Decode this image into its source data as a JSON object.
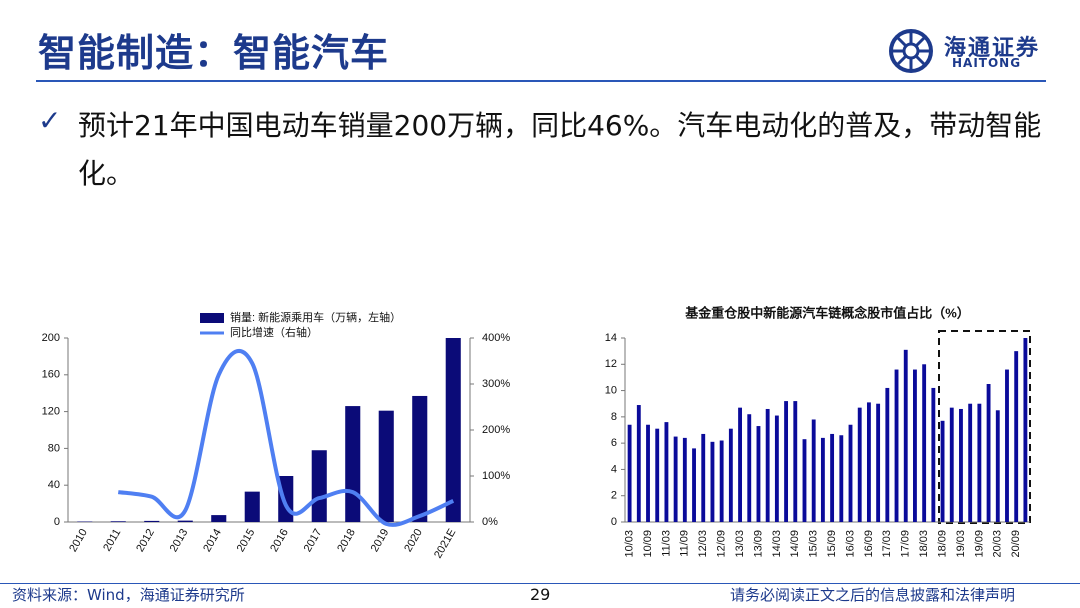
{
  "header": {
    "title": "智能制造：智能汽车",
    "logo_cn": "海通证券",
    "logo_en": "HAITONG"
  },
  "bullet": "预计21年中国电动车销量200万辆，同比46%。汽车电动化的普及，带动智能化。",
  "footer": {
    "source": "资料来源：Wind，海通证券研究所",
    "page": "29",
    "disclaimer": "请务必阅读正文之后的信息披露和法律声明"
  },
  "chart_data": [
    {
      "type": "bar",
      "categories": [
        "2010",
        "2011",
        "2012",
        "2013",
        "2014",
        "2015",
        "2016",
        "2017",
        "2018",
        "2019",
        "2020",
        "2021E"
      ],
      "series": [
        {
          "name": "销量: 新能源乘用车（万辆，左轴）",
          "color": "#0b0b78",
          "values": [
            0.5,
            0.8,
            1.2,
            1.5,
            7.5,
            33,
            50,
            78,
            126,
            121,
            137,
            200
          ]
        },
        {
          "name": "同比增速（右轴）",
          "color": "#4f7ff2",
          "type": "line",
          "axis": "y2",
          "values": [
            null,
            65,
            55,
            25,
            320,
            345,
            37,
            52,
            65,
            -4,
            13,
            46
          ]
        }
      ],
      "ylim": [
        0,
        200
      ],
      "yticks": [
        0,
        40,
        80,
        120,
        160,
        200
      ],
      "y2lim": [
        0,
        400
      ],
      "y2ticks": [
        {
          "value": 0,
          "label": "0%"
        },
        {
          "value": 100,
          "label": "100%"
        },
        {
          "value": 200,
          "label": "200%"
        },
        {
          "value": 300,
          "label": "300%"
        },
        {
          "value": 400,
          "label": "400%"
        }
      ],
      "legend": "top"
    },
    {
      "type": "bar",
      "title": "基金重仓股中新能源汽车链概念股市值占比（%）",
      "categories": [
        "10/03",
        null,
        "10/09",
        null,
        "11/03",
        null,
        "11/09",
        null,
        "12/03",
        null,
        "12/09",
        null,
        "13/03",
        null,
        "13/09",
        null,
        "14/03",
        null,
        "14/09",
        null,
        "15/03",
        null,
        "15/09",
        null,
        "16/03",
        null,
        "16/09",
        null,
        "17/03",
        null,
        "17/09",
        null,
        "18/03",
        null,
        "18/09",
        null,
        "19/03",
        null,
        "19/09",
        null,
        "20/03",
        null,
        "20/09",
        null
      ],
      "series": [
        {
          "color": "#0b0b9a",
          "values": [
            7.4,
            8.9,
            7.4,
            7.1,
            7.6,
            6.5,
            6.4,
            5.6,
            6.7,
            6.1,
            6.2,
            7.1,
            8.7,
            8.2,
            7.3,
            8.6,
            8.1,
            9.2,
            9.2,
            6.3,
            7.8,
            6.4,
            6.7,
            6.6,
            7.4,
            8.7,
            9.1,
            9.0,
            10.2,
            11.6,
            13.1,
            11.6,
            12.0,
            10.2,
            7.7,
            8.7,
            8.6,
            9.0,
            9.0,
            10.5,
            8.5,
            11.6,
            13.0,
            14.0
          ]
        }
      ],
      "ylim": [
        0,
        14
      ],
      "yticks": [
        0,
        2,
        4,
        6,
        8,
        10,
        12,
        14
      ]
    }
  ]
}
